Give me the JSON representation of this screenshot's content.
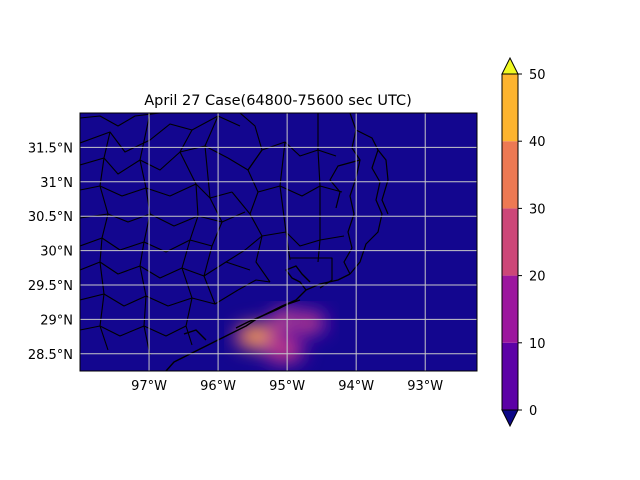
{
  "map": {
    "title": "April 27 Case(64800-75600 sec UTC)",
    "lon_range": [
      -98.0,
      -92.25
    ],
    "lat_range": [
      28.25,
      32.0
    ],
    "lon_ticks": [
      -97,
      -96,
      -95,
      -94,
      -93
    ],
    "lon_tick_labels": [
      "97°W",
      "96°W",
      "95°W",
      "94°W",
      "93°W"
    ],
    "lat_ticks": [
      28.5,
      29,
      29.5,
      30,
      30.5,
      31,
      31.5
    ],
    "lat_tick_labels": [
      "28.5°N",
      "29°N",
      "29.5°N",
      "30°N",
      "30.5°N",
      "31°N",
      "31.5°N"
    ],
    "grid": true,
    "background_color": "#13068f",
    "hotspots": [
      {
        "lon": -95.45,
        "lat": 28.75,
        "value": 45
      },
      {
        "lon": -95.05,
        "lat": 28.55,
        "value": 25
      },
      {
        "lon": -94.95,
        "lat": 28.98,
        "value": 30
      },
      {
        "lon": -94.7,
        "lat": 28.95,
        "value": 22
      }
    ]
  },
  "colorbar": {
    "tick_values": [
      0,
      10,
      20,
      30,
      40,
      50
    ],
    "tick_labels": [
      "0",
      "10",
      "20",
      "30",
      "40",
      "50"
    ],
    "colors": [
      {
        "from": 0,
        "to": 10,
        "color": "#5c01a6"
      },
      {
        "from": 10,
        "to": 20,
        "color": "#9c179e"
      },
      {
        "from": 20,
        "to": 30,
        "color": "#cc4778"
      },
      {
        "from": 30,
        "to": 40,
        "color": "#ed7953"
      },
      {
        "from": 40,
        "to": 50,
        "color": "#fdb42f"
      }
    ],
    "under_color": "#0d0887",
    "over_color": "#f0f921"
  }
}
